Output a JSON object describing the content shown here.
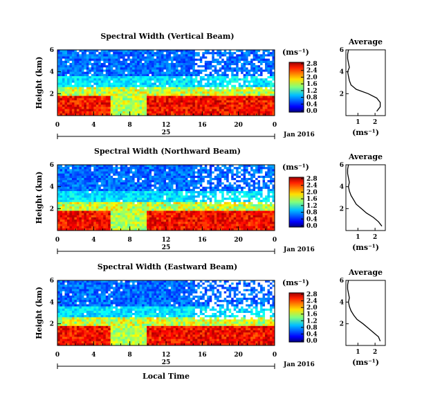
{
  "chart_data": [
    {
      "type": "heatmap",
      "title": "Spectral Width (Vertical Beam)",
      "ylabel": "Height (km)",
      "ylim": [
        0,
        6
      ],
      "yticks": [
        "2",
        "4",
        "6"
      ],
      "x_hours": [
        0,
        4,
        8,
        12,
        16,
        20,
        0
      ],
      "xticks": [
        "0",
        "4",
        "8",
        "12",
        "16",
        "20",
        "0"
      ],
      "date_label": "25",
      "date_right": "Jan 2016",
      "colorbar": {
        "unit": "(ms⁻¹)",
        "labels": [
          "0.0",
          "0.4",
          "0.8",
          "1.2",
          "1.6",
          "2.0",
          "2.4",
          "2.8"
        ]
      },
      "average": {
        "title": "Average",
        "xlabel": "(ms⁻¹)",
        "xticks": [
          "1",
          "2"
        ],
        "yticks": [
          "2",
          "4",
          "6"
        ],
        "profile": [
          [
            0.4,
            2.1
          ],
          [
            0.8,
            2.3
          ],
          [
            1.2,
            2.3
          ],
          [
            1.6,
            2.1
          ],
          [
            2.0,
            1.6
          ],
          [
            2.4,
            0.9
          ],
          [
            2.8,
            0.6
          ],
          [
            3.2,
            0.5
          ],
          [
            3.6,
            0.45
          ],
          [
            4.0,
            0.4
          ],
          [
            4.4,
            0.5
          ],
          [
            4.8,
            0.45
          ],
          [
            5.2,
            0.4
          ],
          [
            5.6,
            0.4
          ],
          [
            6.0,
            0.45
          ]
        ]
      }
    },
    {
      "type": "heatmap",
      "title": "Spectral Width (Northward Beam)",
      "ylabel": "Height (km)",
      "ylim": [
        0,
        6
      ],
      "yticks": [
        "2",
        "4",
        "6"
      ],
      "x_hours": [
        0,
        4,
        8,
        12,
        16,
        20,
        0
      ],
      "xticks": [
        "0",
        "4",
        "8",
        "12",
        "16",
        "20",
        "0"
      ],
      "date_label": "25",
      "date_right": "Jan 2016",
      "colorbar": {
        "unit": "(ms⁻¹)",
        "labels": [
          "0.0",
          "0.4",
          "0.8",
          "1.2",
          "1.6",
          "2.0",
          "2.4",
          "2.8"
        ]
      },
      "average": {
        "title": "Average",
        "xlabel": "(ms⁻¹)",
        "xticks": [
          "1",
          "2"
        ],
        "yticks": [
          "2",
          "4",
          "6"
        ],
        "profile": [
          [
            0.4,
            2.4
          ],
          [
            0.8,
            2.2
          ],
          [
            1.2,
            1.9
          ],
          [
            1.6,
            1.5
          ],
          [
            2.0,
            1.2
          ],
          [
            2.4,
            0.9
          ],
          [
            2.8,
            0.75
          ],
          [
            3.2,
            0.6
          ],
          [
            3.6,
            0.5
          ],
          [
            4.0,
            0.45
          ],
          [
            4.4,
            0.5
          ],
          [
            4.8,
            0.45
          ],
          [
            5.2,
            0.4
          ],
          [
            5.6,
            0.4
          ],
          [
            6.0,
            0.45
          ]
        ]
      }
    },
    {
      "type": "heatmap",
      "title": "Spectral Width (Eastward Beam)",
      "ylabel": "Height (km)",
      "ylim": [
        0,
        6
      ],
      "yticks": [
        "2",
        "4",
        "6"
      ],
      "x_hours": [
        0,
        4,
        8,
        12,
        16,
        20,
        0
      ],
      "xticks": [
        "0",
        "4",
        "8",
        "12",
        "16",
        "20",
        "0"
      ],
      "date_label": "25",
      "date_right": "Jan 2016",
      "xlabel": "Local Time",
      "colorbar": {
        "unit": "(ms⁻¹)",
        "labels": [
          "0.0",
          "0.4",
          "0.8",
          "1.2",
          "1.6",
          "2.0",
          "2.4",
          "2.8"
        ]
      },
      "average": {
        "title": "Average",
        "xlabel": "(ms⁻¹)",
        "xticks": [
          "1",
          "2"
        ],
        "yticks": [
          "2",
          "4",
          "6"
        ],
        "profile": [
          [
            0.4,
            2.3
          ],
          [
            0.8,
            2.2
          ],
          [
            1.2,
            1.9
          ],
          [
            1.6,
            1.6
          ],
          [
            2.0,
            1.3
          ],
          [
            2.4,
            0.95
          ],
          [
            2.8,
            0.75
          ],
          [
            3.2,
            0.6
          ],
          [
            3.6,
            0.5
          ],
          [
            4.0,
            0.45
          ],
          [
            4.4,
            0.5
          ],
          [
            4.8,
            0.45
          ],
          [
            5.2,
            0.4
          ],
          [
            5.6,
            0.4
          ],
          [
            6.0,
            0.45
          ]
        ]
      }
    }
  ]
}
